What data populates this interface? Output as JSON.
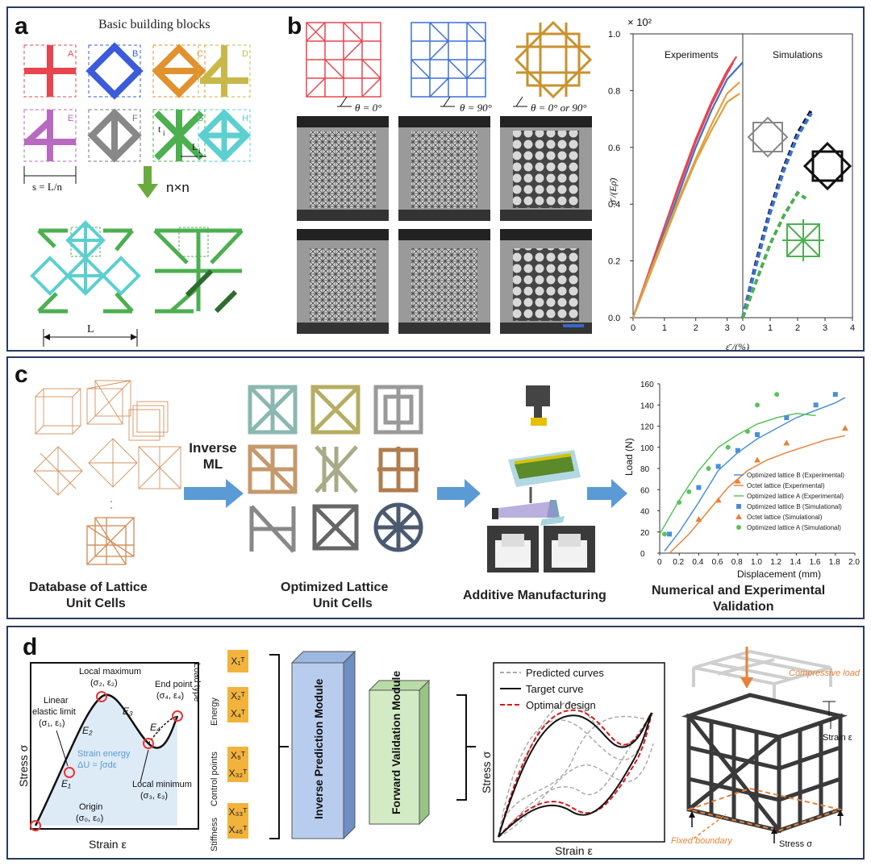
{
  "panel_a": {
    "tag": "a",
    "title": "Basic building blocks",
    "blocks": [
      "A",
      "B",
      "C",
      "D",
      "E",
      "F",
      "G",
      "H"
    ],
    "s_label": "s = L/n",
    "t_label": "t",
    "t_sub": "i",
    "l_label": "L",
    "l_sub": "i",
    "arrow_label": "n×n",
    "L_label": "L"
  },
  "panel_b": {
    "tag": "b",
    "angles": [
      "θ = 0°",
      "θ = 90°",
      "θ = 0° or 90°"
    ],
    "experiments_label": "Experiments",
    "simulations_label": "Simulations",
    "exponent_label": "× 10²",
    "ylabel": "σ̄ /(Eρ̄)",
    "xlabel": "ε̄ /(%)"
  },
  "panel_c": {
    "tag": "c",
    "inverse_ml": "Inverse ML",
    "database_label_1": "Database of Lattice",
    "database_label_2": "Unit Cells",
    "optimized_label_1": "Optimized Lattice",
    "optimized_label_2": "Unit Cells",
    "am_label": "Additive Manufacturing",
    "validation_label_1": "Numerical and Experimental",
    "validation_label_2": "Validation"
  },
  "panel_d": {
    "tag": "d",
    "stress_label": "Stress σ",
    "strain_label": "Strain ε",
    "local_max": "Local maximum",
    "local_max_coord": "(σ₂, ε₂)",
    "end_point": "End point",
    "end_point_coord": "(σ₄, ε₄)",
    "linear_limit_1": "Linear",
    "linear_limit_2": "elastic limit",
    "linear_limit_coord": "(σ₁, ε₁)",
    "strain_energy": "Strain energy",
    "strain_energy_eq": "ΔU = ∫σdε",
    "local_min": "Local minimum",
    "local_min_coord": "(σ₃, ε₃)",
    "origin": "Origin",
    "origin_coord": "(σ₀, ε₀)",
    "E_labels": [
      "E₁",
      "E₂",
      "E₃",
      "E₄"
    ],
    "groups": [
      {
        "name": "Load type",
        "top": "X₁ᵀ",
        "bottom": ""
      },
      {
        "name": "Energy",
        "top": "X₂ᵀ",
        "bottom": "X₄ᵀ"
      },
      {
        "name": "Control points",
        "top": "X₅ᵀ",
        "bottom": "X₃₂ᵀ"
      },
      {
        "name": "Stiffness",
        "top": "X₃₃ᵀ",
        "bottom": "X₄₆ᵀ"
      }
    ],
    "inverse_module": "Inverse Prediction Module",
    "forward_module": "Forward Validation Module",
    "legend": [
      "Predicted curves",
      "Target curve",
      "Optimal design"
    ],
    "right_stress": "Stress σ",
    "right_strain": "Strain ε",
    "compressive_load": "Compressive load",
    "strain_e": "Strain ε",
    "fixed_boundary": "Fixed boundary",
    "stress_s": "Stress σ"
  },
  "chart_data": [
    {
      "type": "line",
      "title": "Experiments",
      "xlabel": "ε̄ /(%)",
      "ylabel": "σ̄ /(Eρ̄)",
      "ylim": [
        0,
        1.0
      ],
      "y_scale_note": "× 10²",
      "xlim": [
        0,
        3.5
      ],
      "x_ticks": [
        0,
        1,
        2,
        3
      ],
      "y_ticks": [
        0.0,
        0.2,
        0.4,
        0.6,
        0.8,
        1.0
      ],
      "series": [
        {
          "name": "red lattice",
          "color": "#e8454f",
          "x": [
            0,
            0.5,
            1,
            1.5,
            2,
            2.5,
            3,
            3.3
          ],
          "y": [
            0,
            0.16,
            0.32,
            0.48,
            0.63,
            0.76,
            0.87,
            0.92
          ]
        },
        {
          "name": "red lattice 2",
          "color": "#e8454f",
          "x": [
            0,
            0.5,
            1,
            1.5,
            2,
            2.5,
            3,
            3.2
          ],
          "y": [
            0,
            0.16,
            0.32,
            0.47,
            0.62,
            0.75,
            0.86,
            0.9
          ]
        },
        {
          "name": "blue lattice",
          "color": "#3b6fd8",
          "x": [
            0,
            0.5,
            1,
            1.5,
            2,
            2.5,
            3,
            3.5
          ],
          "y": [
            0,
            0.15,
            0.3,
            0.45,
            0.6,
            0.73,
            0.84,
            0.9
          ]
        },
        {
          "name": "orange lattice",
          "color": "#e0a040",
          "x": [
            0,
            0.5,
            1,
            1.5,
            2,
            2.5,
            3,
            3.4
          ],
          "y": [
            0,
            0.15,
            0.29,
            0.43,
            0.56,
            0.68,
            0.79,
            0.83
          ]
        },
        {
          "name": "orange lattice 2",
          "color": "#e0a040",
          "x": [
            0,
            0.5,
            1,
            1.5,
            2,
            2.5,
            3,
            3.4
          ],
          "y": [
            0,
            0.14,
            0.28,
            0.42,
            0.55,
            0.66,
            0.76,
            0.79
          ]
        }
      ]
    },
    {
      "type": "line",
      "title": "Simulations",
      "xlim": [
        0,
        4
      ],
      "x_ticks": [
        0,
        1,
        2,
        3,
        4
      ],
      "series": [
        {
          "name": "black",
          "color": "#111111",
          "x": [
            0,
            0.5,
            1,
            1.5,
            2,
            2.5
          ],
          "y": [
            0,
            0.2,
            0.38,
            0.53,
            0.65,
            0.73
          ]
        },
        {
          "name": "blue",
          "color": "#3b6fd8",
          "x": [
            0,
            0.5,
            1,
            1.5,
            2,
            2.5
          ],
          "y": [
            0,
            0.19,
            0.37,
            0.52,
            0.64,
            0.72
          ]
        },
        {
          "name": "green",
          "color": "#4caf50",
          "x": [
            0,
            0.5,
            1,
            1.5,
            2,
            2.3
          ],
          "y": [
            0,
            0.13,
            0.26,
            0.36,
            0.44,
            0.42
          ]
        }
      ]
    },
    {
      "type": "line",
      "title": "",
      "xlabel": "Displacement (mm)",
      "ylabel": "Load (N)",
      "xlim": [
        0,
        2.0
      ],
      "ylim": [
        0,
        160
      ],
      "x_ticks": [
        0,
        0.2,
        0.4,
        0.6,
        0.8,
        1.0,
        1.2,
        1.4,
        1.6,
        1.8,
        2.0
      ],
      "y_ticks": [
        0,
        20,
        40,
        60,
        80,
        100,
        120,
        140,
        160
      ],
      "series": [
        {
          "name": "Optimized lattice B (Experimental)",
          "color": "#4a90d9",
          "style": "line",
          "x": [
            0.05,
            0.2,
            0.4,
            0.6,
            0.8,
            1.0,
            1.2,
            1.4,
            1.6,
            1.8,
            1.9
          ],
          "y": [
            2,
            20,
            48,
            78,
            95,
            108,
            118,
            128,
            135,
            142,
            147
          ]
        },
        {
          "name": "Octet lattice (Experimental)",
          "color": "#e8823a",
          "style": "line",
          "x": [
            0.1,
            0.3,
            0.5,
            0.7,
            0.9,
            1.1,
            1.3,
            1.5,
            1.7,
            1.9
          ],
          "y": [
            0,
            18,
            40,
            62,
            78,
            88,
            95,
            101,
            107,
            111
          ]
        },
        {
          "name": "Optimized lattice A (Experimental)",
          "color": "#5cc25c",
          "style": "line",
          "x": [
            0,
            0.2,
            0.4,
            0.6,
            0.8,
            1.0,
            1.2,
            1.4,
            1.6
          ],
          "y": [
            18,
            50,
            78,
            100,
            112,
            122,
            128,
            132,
            130
          ]
        },
        {
          "name": "Optimized lattice B (Simulational)",
          "color": "#4a90d9",
          "style": "square",
          "x": [
            0.1,
            0.4,
            0.6,
            0.8,
            1.0,
            1.3,
            1.6,
            1.8
          ],
          "y": [
            18,
            62,
            82,
            97,
            112,
            128,
            140,
            150
          ]
        },
        {
          "name": "Octet lattice (Simulational)",
          "color": "#e8823a",
          "style": "triangle",
          "x": [
            0.4,
            0.6,
            0.8,
            1.0,
            1.3,
            1.9
          ],
          "y": [
            32,
            50,
            68,
            88,
            104,
            118
          ]
        },
        {
          "name": "Optimized lattice A (Simulational)",
          "color": "#5cc25c",
          "style": "circle",
          "x": [
            0.05,
            0.2,
            0.3,
            0.5,
            0.7,
            0.9,
            1.0,
            1.2
          ],
          "y": [
            18,
            48,
            58,
            80,
            100,
            115,
            140,
            150
          ]
        }
      ]
    }
  ]
}
